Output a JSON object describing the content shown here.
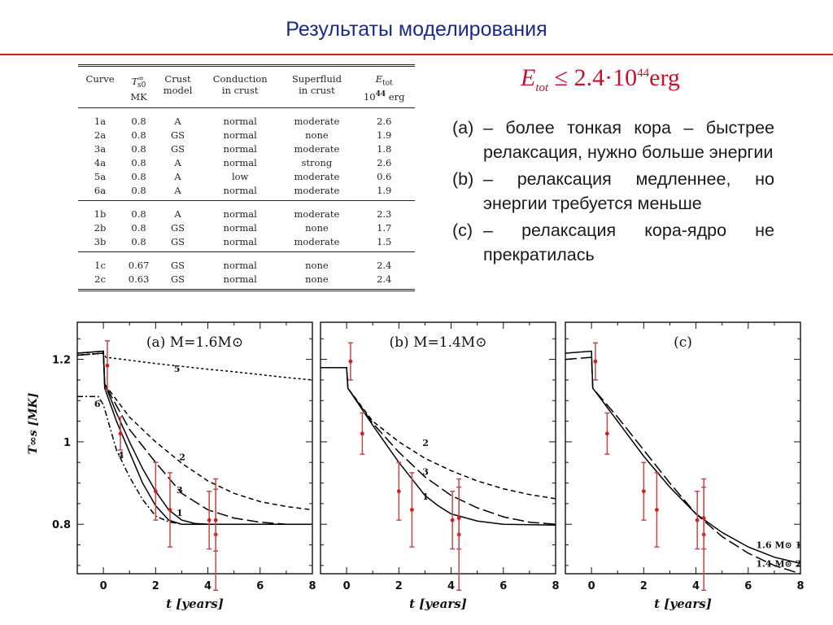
{
  "slide": {
    "title": "Результаты моделирования"
  },
  "table": {
    "headers": [
      {
        "top": "Curve",
        "bottom": ""
      },
      {
        "top": "T",
        "sup": "∞",
        "sub": "s0",
        "bottom": "MK"
      },
      {
        "top": "Crust",
        "bottom": "model"
      },
      {
        "top": "Conduction",
        "bottom": "in crust"
      },
      {
        "top": "Superfluid",
        "bottom": "in crust"
      },
      {
        "top": "E",
        "sub": "tot",
        "bottom_pre": "10",
        "bottom_sup": "44",
        "bottom_post": " erg"
      }
    ],
    "groups": [
      [
        [
          "1a",
          "0.8",
          "A",
          "normal",
          "moderate",
          "2.6"
        ],
        [
          "2a",
          "0.8",
          "GS",
          "normal",
          "none",
          "1.9"
        ],
        [
          "3a",
          "0.8",
          "GS",
          "normal",
          "moderate",
          "1.8"
        ],
        [
          "4a",
          "0.8",
          "A",
          "normal",
          "strong",
          "2.6"
        ],
        [
          "5a",
          "0.8",
          "A",
          "low",
          "moderate",
          "0.6"
        ],
        [
          "6a",
          "0.8",
          "A",
          "normal",
          "moderate",
          "1.9"
        ]
      ],
      [
        [
          "1b",
          "0.8",
          "A",
          "normal",
          "moderate",
          "2.3"
        ],
        [
          "2b",
          "0.8",
          "GS",
          "normal",
          "none",
          "1.7"
        ],
        [
          "3b",
          "0.8",
          "GS",
          "normal",
          "moderate",
          "1.5"
        ]
      ],
      [
        [
          "1c",
          "0.67",
          "GS",
          "normal",
          "none",
          "2.4"
        ],
        [
          "2c",
          "0.63",
          "GS",
          "normal",
          "none",
          "2.4"
        ]
      ]
    ]
  },
  "formula": {
    "lhs": "E",
    "lhs_sub": "tot",
    "relation": "≤ 2.4·10",
    "exponent": "44",
    "unit": "erg"
  },
  "explanations": [
    {
      "marker": "(a)",
      "text": "– более тонкая кора – быстрее релаксация, нужно больше энергии"
    },
    {
      "marker": "(b)",
      "text": "– релаксация медленнее, но энергии требуется меньше"
    },
    {
      "marker": "(c)",
      "text": " – релаксация кора-ядро не прекратилась"
    }
  ],
  "chart_data": [
    {
      "type": "line",
      "panel_label": "(a)",
      "title": "M=1.6M⊙",
      "ylabel": "T∞s [MK]",
      "xlabel": "t [years]",
      "xlim": [
        -1,
        8
      ],
      "ylim": [
        0.68,
        1.29
      ],
      "xticks": [
        0,
        2,
        4,
        6,
        8
      ],
      "yticks": [
        0.8,
        1,
        1.2
      ],
      "curve_labels": [
        {
          "text": "5",
          "x": 2.7,
          "y": 1.17
        },
        {
          "text": "2",
          "x": 2.9,
          "y": 0.955
        },
        {
          "text": "3",
          "x": 2.8,
          "y": 0.875
        },
        {
          "text": "1",
          "x": 2.8,
          "y": 0.82
        },
        {
          "text": "6",
          "x": -0.35,
          "y": 1.085
        },
        {
          "text": "4",
          "x": 0.55,
          "y": 0.96
        }
      ],
      "series": [
        {
          "name": "1",
          "dash": "solid",
          "points": [
            [
              -1,
              1.215
            ],
            [
              0,
              1.22
            ],
            [
              0.05,
              1.14
            ],
            [
              0.5,
              1.07
            ],
            [
              1,
              1.0
            ],
            [
              1.5,
              0.935
            ],
            [
              2,
              0.88
            ],
            [
              2.5,
              0.835
            ],
            [
              3,
              0.81
            ],
            [
              3.5,
              0.802
            ],
            [
              4,
              0.8
            ],
            [
              8,
              0.8
            ]
          ]
        },
        {
          "name": "2",
          "dash": "6,4",
          "points": [
            [
              -1,
              1.21
            ],
            [
              0,
              1.215
            ],
            [
              0.05,
              1.14
            ],
            [
              1,
              1.06
            ],
            [
              2,
              1.0
            ],
            [
              3,
              0.948
            ],
            [
              4,
              0.905
            ],
            [
              5,
              0.875
            ],
            [
              6,
              0.855
            ],
            [
              7,
              0.843
            ],
            [
              8,
              0.835
            ]
          ]
        },
        {
          "name": "3",
          "dash": "14,5",
          "points": [
            [
              -1,
              1.21
            ],
            [
              0,
              1.215
            ],
            [
              0.05,
              1.14
            ],
            [
              1,
              1.03
            ],
            [
              2,
              0.95
            ],
            [
              3,
              0.875
            ],
            [
              4,
              0.835
            ],
            [
              5,
              0.815
            ],
            [
              6,
              0.805
            ],
            [
              7,
              0.8
            ],
            [
              8,
              0.8
            ]
          ]
        },
        {
          "name": "4",
          "dash": "solid",
          "points": [
            [
              -1,
              1.215
            ],
            [
              0,
              1.22
            ],
            [
              0.05,
              1.13
            ],
            [
              0.5,
              1.05
            ],
            [
              1,
              0.975
            ],
            [
              1.5,
              0.9
            ],
            [
              2,
              0.845
            ],
            [
              2.5,
              0.81
            ],
            [
              3,
              0.8
            ],
            [
              8,
              0.8
            ]
          ]
        },
        {
          "name": "5",
          "dash": "3,3",
          "points": [
            [
              -1,
              1.21
            ],
            [
              0,
              1.215
            ],
            [
              0.1,
              1.205
            ],
            [
              1,
              1.198
            ],
            [
              2,
              1.19
            ],
            [
              3,
              1.183
            ],
            [
              4,
              1.176
            ],
            [
              5,
              1.17
            ],
            [
              6,
              1.163
            ],
            [
              7,
              1.156
            ],
            [
              8,
              1.15
            ]
          ]
        },
        {
          "name": "6",
          "dash": "7,3,2,3",
          "points": [
            [
              -1,
              1.11
            ],
            [
              -0.2,
              1.11
            ],
            [
              0,
              1.09
            ],
            [
              0.5,
              0.98
            ],
            [
              1,
              0.915
            ],
            [
              1.5,
              0.86
            ],
            [
              2,
              0.82
            ],
            [
              2.5,
              0.806
            ],
            [
              3,
              0.8
            ],
            [
              8,
              0.8
            ]
          ]
        }
      ],
      "data_points": [
        {
          "x": 0.15,
          "y": 1.185,
          "err": 0.06
        },
        {
          "x": 0.65,
          "y": 1.02,
          "err": 0.04
        },
        {
          "x": 2.0,
          "y": 0.88,
          "err": 0.07
        },
        {
          "x": 2.55,
          "y": 0.835,
          "err": 0.09
        },
        {
          "x": 4.05,
          "y": 0.81,
          "err": 0.07
        },
        {
          "x": 4.3,
          "y": 0.775,
          "err": 0.135
        },
        {
          "x": 4.3,
          "y": 0.81,
          "err": 0.075
        }
      ]
    },
    {
      "type": "line",
      "panel_label": "(b)",
      "title": "M=1.4M⊙",
      "xlabel": "t [years]",
      "xlim": [
        -1,
        8
      ],
      "ylim": [
        0.68,
        1.29
      ],
      "xticks": [
        0,
        2,
        4,
        6,
        8
      ],
      "curve_labels": [
        {
          "text": "2",
          "x": 2.9,
          "y": 0.99
        },
        {
          "text": "3",
          "x": 2.9,
          "y": 0.92
        },
        {
          "text": "1",
          "x": 2.9,
          "y": 0.86
        }
      ],
      "series": [
        {
          "name": "1",
          "dash": "solid",
          "points": [
            [
              -1,
              1.18
            ],
            [
              0,
              1.18
            ],
            [
              0.05,
              1.13
            ],
            [
              1,
              1.04
            ],
            [
              2,
              0.95
            ],
            [
              3,
              0.87
            ],
            [
              3.5,
              0.845
            ],
            [
              4,
              0.825
            ],
            [
              5,
              0.808
            ],
            [
              6,
              0.8
            ],
            [
              8,
              0.798
            ]
          ]
        },
        {
          "name": "2",
          "dash": "6,4",
          "points": [
            [
              -1,
              1.18
            ],
            [
              0,
              1.18
            ],
            [
              0.05,
              1.13
            ],
            [
              1,
              1.05
            ],
            [
              2,
              1.0
            ],
            [
              3,
              0.96
            ],
            [
              4,
              0.93
            ],
            [
              5,
              0.905
            ],
            [
              6,
              0.886
            ],
            [
              7,
              0.872
            ],
            [
              8,
              0.862
            ]
          ]
        },
        {
          "name": "3",
          "dash": "14,5",
          "points": [
            [
              -1,
              1.18
            ],
            [
              0,
              1.18
            ],
            [
              0.05,
              1.13
            ],
            [
              1,
              1.045
            ],
            [
              2,
              0.975
            ],
            [
              3,
              0.915
            ],
            [
              4,
              0.87
            ],
            [
              5,
              0.84
            ],
            [
              6,
              0.818
            ],
            [
              7,
              0.805
            ],
            [
              8,
              0.8
            ]
          ]
        }
      ],
      "data_points": [
        {
          "x": 0.15,
          "y": 1.195,
          "err": 0.045
        },
        {
          "x": 0.6,
          "y": 1.02,
          "err": 0.05
        },
        {
          "x": 2.0,
          "y": 0.88,
          "err": 0.07
        },
        {
          "x": 2.5,
          "y": 0.835,
          "err": 0.09
        },
        {
          "x": 4.05,
          "y": 0.81,
          "err": 0.07
        },
        {
          "x": 4.3,
          "y": 0.775,
          "err": 0.135
        },
        {
          "x": 4.3,
          "y": 0.815,
          "err": 0.075
        }
      ]
    },
    {
      "type": "line",
      "panel_label": "(c)",
      "xlabel": "t [years]",
      "xlim": [
        -1,
        8
      ],
      "ylim": [
        0.68,
        1.29
      ],
      "xticks": [
        0,
        2,
        4,
        6,
        8
      ],
      "curve_labels": [
        {
          "text": "1.6 M⊙  1",
          "x": 6.3,
          "y": 0.742
        },
        {
          "text": "1.4 M⊙  2",
          "x": 6.3,
          "y": 0.697
        }
      ],
      "series": [
        {
          "name": "1",
          "dash": "solid",
          "points": [
            [
              -1,
              1.215
            ],
            [
              0,
              1.22
            ],
            [
              0.05,
              1.13
            ],
            [
              1,
              1.05
            ],
            [
              2,
              0.965
            ],
            [
              3,
              0.89
            ],
            [
              4,
              0.825
            ],
            [
              5,
              0.78
            ],
            [
              6,
              0.745
            ],
            [
              7,
              0.72
            ],
            [
              8,
              0.705
            ]
          ]
        },
        {
          "name": "2",
          "dash": "14,5",
          "points": [
            [
              -1,
              1.2
            ],
            [
              0,
              1.205
            ],
            [
              0.05,
              1.13
            ],
            [
              1,
              1.06
            ],
            [
              2,
              0.98
            ],
            [
              3,
              0.9
            ],
            [
              4,
              0.825
            ],
            [
              5,
              0.77
            ],
            [
              6,
              0.73
            ],
            [
              7,
              0.7
            ],
            [
              8,
              0.68
            ]
          ]
        }
      ],
      "data_points": [
        {
          "x": 0.15,
          "y": 1.195,
          "err": 0.045
        },
        {
          "x": 0.6,
          "y": 1.02,
          "err": 0.05
        },
        {
          "x": 2.0,
          "y": 0.88,
          "err": 0.07
        },
        {
          "x": 2.5,
          "y": 0.835,
          "err": 0.09
        },
        {
          "x": 4.05,
          "y": 0.81,
          "err": 0.07
        },
        {
          "x": 4.3,
          "y": 0.775,
          "err": 0.135
        },
        {
          "x": 4.3,
          "y": 0.815,
          "err": 0.075
        }
      ]
    }
  ],
  "colors": {
    "title": "#1a2a8c",
    "rule": "#d21e1e",
    "formula": "#c8102e",
    "data_points": "#d11f1f",
    "error_bars": "#c04a4a",
    "curves": "#000000"
  }
}
